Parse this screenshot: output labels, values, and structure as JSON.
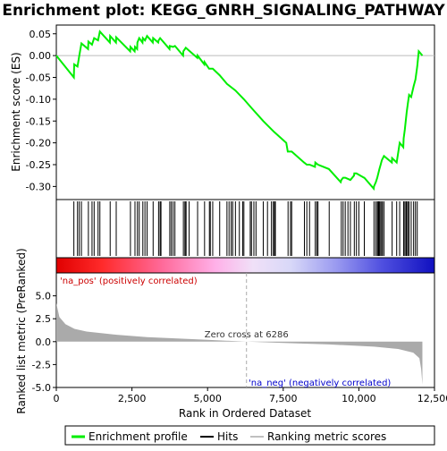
{
  "chart_data": {
    "type": "line",
    "title": "Enrichment plot: KEGG_GNRH_SIGNALING_PATHWAY",
    "xlabel": "Rank in Ordered Dataset",
    "ylabel_top": "Enrichment score (ES)",
    "ylabel_bottom": "Ranked list metric (PreRanked)",
    "x_ticks": [
      0,
      2500,
      5000,
      7500,
      10000,
      12500
    ],
    "x_tick_labels": [
      "0",
      "2,500",
      "5,000",
      "7,500",
      "10,000",
      "12,500"
    ],
    "xlim": [
      0,
      12500
    ],
    "es_ylim": [
      -0.33,
      0.07
    ],
    "es_y_ticks": [
      0.05,
      0.0,
      -0.05,
      -0.1,
      -0.15,
      -0.2,
      -0.25,
      -0.3
    ],
    "es_y_tick_labels": [
      "0.05",
      "0.00",
      "-0.05",
      "-0.10",
      "-0.15",
      "-0.20",
      "-0.25",
      "-0.30"
    ],
    "metric_ylim": [
      -5.0,
      7.5
    ],
    "metric_y_ticks": [
      5.0,
      2.5,
      0.0,
      -2.5,
      -5.0
    ],
    "metric_y_tick_labels": [
      "5.0",
      "2.5",
      "0.0",
      "-2.5",
      "-5.0"
    ],
    "total_genes": 12100,
    "zero_cross": 6286,
    "zero_cross_label": "Zero cross at 6286",
    "pos_label": "'na_pos' (positively correlated)",
    "neg_label": "'na_neg' (negatively correlated)",
    "legend": [
      {
        "name": "Enrichment profile",
        "color": "#00ee00"
      },
      {
        "name": "Hits",
        "color": "#000000"
      },
      {
        "name": "Ranking metric scores",
        "color": "#c0c0c0"
      }
    ],
    "es_color": "#00ee00",
    "metric_color": "#aaaaaa",
    "hits": [
      580,
      700,
      760,
      830,
      1060,
      1180,
      1250,
      1380,
      1440,
      1780,
      1980,
      2450,
      2600,
      2680,
      2740,
      2860,
      2930,
      3000,
      3200,
      3380,
      3430,
      3460,
      3750,
      3800,
      3860,
      3920,
      4200,
      4250,
      4280,
      4290,
      4390,
      4670,
      4900,
      5060,
      5090,
      5170,
      5400,
      5640,
      5710,
      5780,
      5830,
      5920,
      6050,
      6160,
      6200,
      6410,
      6450,
      6530,
      6600,
      6840,
      6980,
      7110,
      7170,
      7210,
      7240,
      7660,
      7740,
      7780,
      8200,
      8280,
      8370,
      8560,
      8610,
      8650,
      9020,
      9420,
      9480,
      9550,
      9640,
      9720,
      9850,
      9920,
      10000,
      10180,
      10500,
      10560,
      10610,
      10640,
      10660,
      10680,
      10720,
      10760,
      10780,
      10830,
      11100,
      11250,
      11350,
      11480,
      11520,
      11560,
      11580,
      11620,
      11660,
      11730,
      11810,
      11870,
      11930
    ],
    "es_points": [
      [
        0,
        0.0
      ],
      [
        580,
        -0.05
      ],
      [
        590,
        -0.02
      ],
      [
        700,
        -0.025
      ],
      [
        760,
        0.0
      ],
      [
        830,
        0.028
      ],
      [
        1050,
        0.015
      ],
      [
        1060,
        0.032
      ],
      [
        1180,
        0.025
      ],
      [
        1250,
        0.04
      ],
      [
        1380,
        0.035
      ],
      [
        1440,
        0.055
      ],
      [
        1770,
        0.03
      ],
      [
        1780,
        0.045
      ],
      [
        1970,
        0.03
      ],
      [
        1980,
        0.042
      ],
      [
        2440,
        0.01
      ],
      [
        2450,
        0.02
      ],
      [
        2590,
        0.01
      ],
      [
        2600,
        0.02
      ],
      [
        2670,
        0.015
      ],
      [
        2680,
        0.03
      ],
      [
        2740,
        0.04
      ],
      [
        2850,
        0.03
      ],
      [
        2860,
        0.04
      ],
      [
        2930,
        0.035
      ],
      [
        3000,
        0.045
      ],
      [
        3190,
        0.03
      ],
      [
        3200,
        0.04
      ],
      [
        3370,
        0.03
      ],
      [
        3380,
        0.035
      ],
      [
        3430,
        0.04
      ],
      [
        3740,
        0.015
      ],
      [
        3750,
        0.022
      ],
      [
        3860,
        0.02
      ],
      [
        3920,
        0.022
      ],
      [
        4190,
        0.0
      ],
      [
        4200,
        0.01
      ],
      [
        4280,
        0.018
      ],
      [
        4660,
        -0.005
      ],
      [
        4670,
        0.0
      ],
      [
        4890,
        -0.02
      ],
      [
        4900,
        -0.015
      ],
      [
        5050,
        -0.03
      ],
      [
        5170,
        -0.03
      ],
      [
        5400,
        -0.045
      ],
      [
        5640,
        -0.065
      ],
      [
        5920,
        -0.08
      ],
      [
        6200,
        -0.1
      ],
      [
        6450,
        -0.12
      ],
      [
        6840,
        -0.15
      ],
      [
        7200,
        -0.175
      ],
      [
        7600,
        -0.2
      ],
      [
        7650,
        -0.22
      ],
      [
        7780,
        -0.22
      ],
      [
        8190,
        -0.245
      ],
      [
        8280,
        -0.25
      ],
      [
        8370,
        -0.25
      ],
      [
        8550,
        -0.255
      ],
      [
        8560,
        -0.245
      ],
      [
        8650,
        -0.25
      ],
      [
        9010,
        -0.26
      ],
      [
        9400,
        -0.29
      ],
      [
        9420,
        -0.285
      ],
      [
        9480,
        -0.28
      ],
      [
        9550,
        -0.28
      ],
      [
        9720,
        -0.285
      ],
      [
        9840,
        -0.275
      ],
      [
        9850,
        -0.27
      ],
      [
        9920,
        -0.27
      ],
      [
        10170,
        -0.28
      ],
      [
        10180,
        -0.28
      ],
      [
        10490,
        -0.305
      ],
      [
        10500,
        -0.3
      ],
      [
        10560,
        -0.29
      ],
      [
        10610,
        -0.28
      ],
      [
        10680,
        -0.26
      ],
      [
        10720,
        -0.25
      ],
      [
        10760,
        -0.24
      ],
      [
        10830,
        -0.23
      ],
      [
        11090,
        -0.245
      ],
      [
        11100,
        -0.235
      ],
      [
        11250,
        -0.245
      ],
      [
        11350,
        -0.2
      ],
      [
        11470,
        -0.21
      ],
      [
        11480,
        -0.19
      ],
      [
        11520,
        -0.17
      ],
      [
        11580,
        -0.13
      ],
      [
        11620,
        -0.11
      ],
      [
        11660,
        -0.09
      ],
      [
        11730,
        -0.095
      ],
      [
        11810,
        -0.07
      ],
      [
        11870,
        -0.055
      ],
      [
        11930,
        -0.025
      ],
      [
        11980,
        0.01
      ],
      [
        12100,
        0.0
      ]
    ],
    "metric_curve": [
      [
        0,
        4.2
      ],
      [
        100,
        2.7
      ],
      [
        300,
        1.9
      ],
      [
        600,
        1.4
      ],
      [
        1000,
        1.1
      ],
      [
        2000,
        0.75
      ],
      [
        3000,
        0.5
      ],
      [
        4000,
        0.35
      ],
      [
        5000,
        0.2
      ],
      [
        6286,
        0.0
      ],
      [
        7500,
        -0.15
      ],
      [
        9000,
        -0.3
      ],
      [
        10500,
        -0.55
      ],
      [
        11300,
        -0.8
      ],
      [
        11800,
        -1.2
      ],
      [
        12000,
        -1.8
      ],
      [
        12060,
        -3.0
      ],
      [
        12100,
        -4.7
      ]
    ]
  }
}
